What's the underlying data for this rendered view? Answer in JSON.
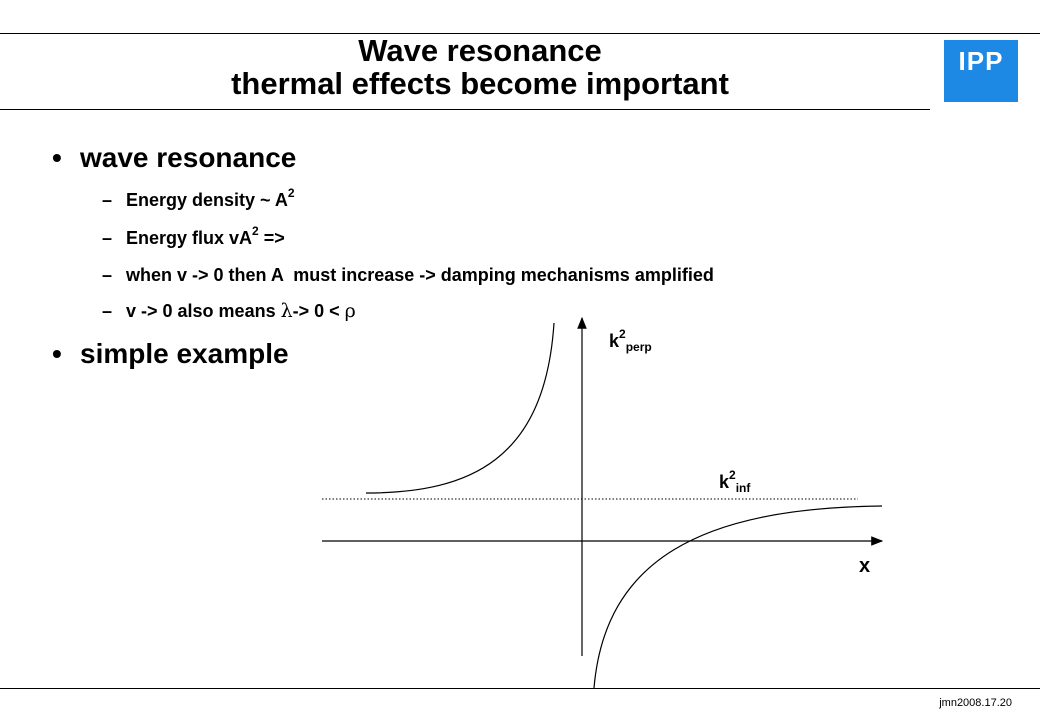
{
  "title": {
    "line1": "Wave resonance",
    "line2": "thermal effects become important"
  },
  "logo": {
    "text": "IPP",
    "color": "#1e88e5"
  },
  "bullets": [
    {
      "text": "wave resonance",
      "subitems": [
        {
          "parts": [
            "Energy density ~ A",
            "2",
            ""
          ]
        },
        {
          "parts": [
            "Energy flux vA",
            "2",
            " =>"
          ]
        },
        {
          "parts": [
            "when v -> 0 then A  must increase -> damping mechanisms amplified",
            "",
            ""
          ]
        },
        {
          "parts": [
            "v -> 0 also means ",
            "λ",
            "-> 0 < ",
            "ρ"
          ]
        }
      ]
    },
    {
      "text": "simple example",
      "subitems": []
    }
  ],
  "graph": {
    "y_axis_label": {
      "base": "k",
      "sup": "2",
      "sub": "perp"
    },
    "asymptote_label": {
      "base": "k",
      "sup": "2",
      "sub": "inf"
    },
    "x_axis_label": "x"
  },
  "footer": "jmn2008.17.20"
}
